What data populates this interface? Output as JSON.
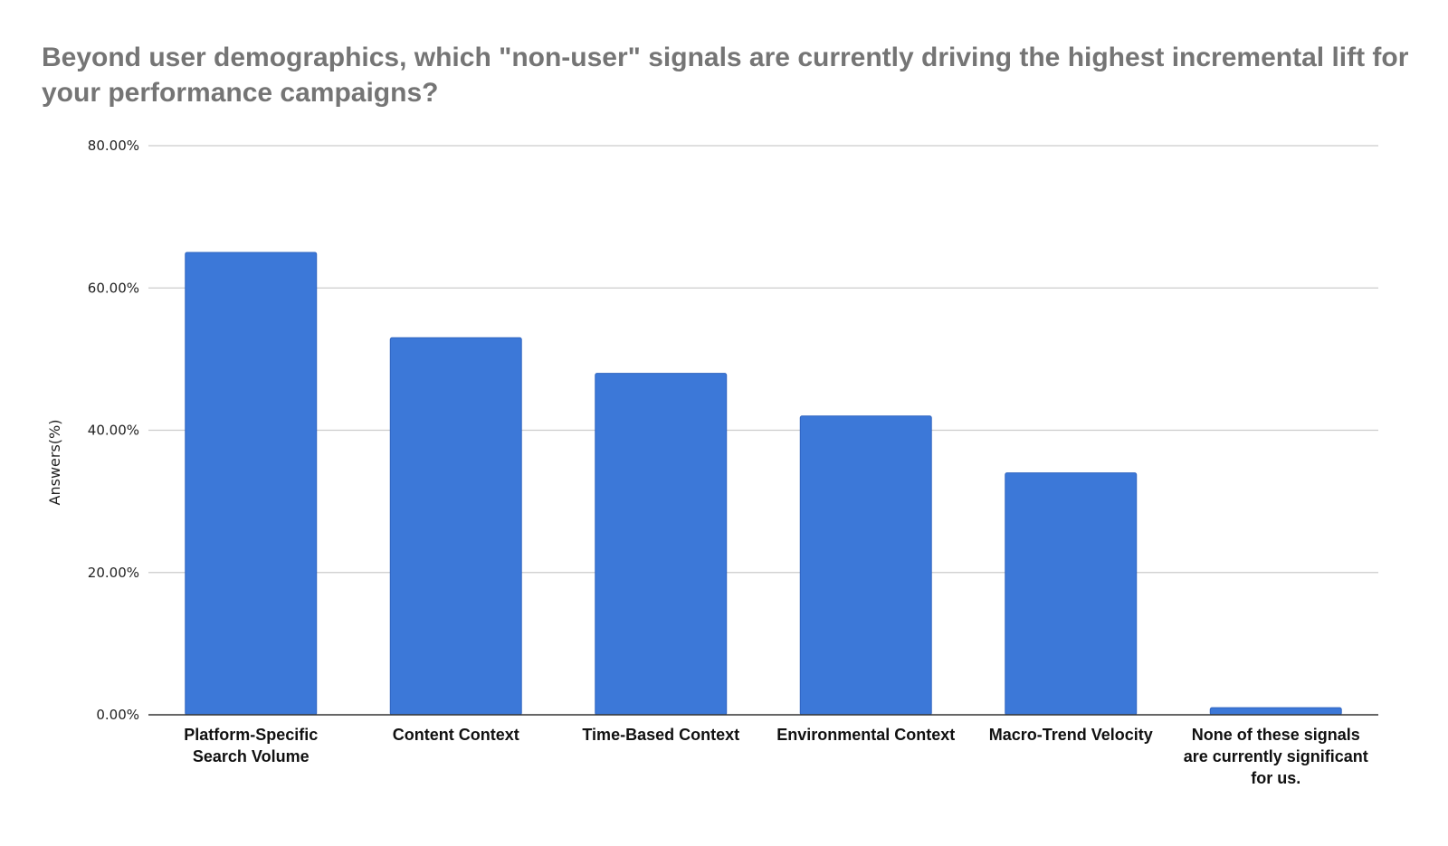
{
  "chart_data": {
    "type": "bar",
    "title": "Beyond user demographics, which \"non-user\" signals are currently driving the highest incremental lift for your performance campaigns?",
    "xlabel": "",
    "ylabel": "Answers(%)",
    "ylim": [
      0,
      80
    ],
    "yticks": [
      "0.00%",
      "20.00%",
      "40.00%",
      "60.00%",
      "80.00%"
    ],
    "grid": true,
    "legend": "none",
    "bar_color": "#3c78d8",
    "categories": [
      [
        "Platform-Specific",
        "Search Volume"
      ],
      [
        "Content Context"
      ],
      [
        "Time-Based Context"
      ],
      [
        "Environmental Context"
      ],
      [
        "Macro-Trend Velocity"
      ],
      [
        "None of these signals",
        "are currently significant",
        "for us."
      ]
    ],
    "values": [
      65,
      53,
      48,
      42,
      34,
      1
    ]
  }
}
